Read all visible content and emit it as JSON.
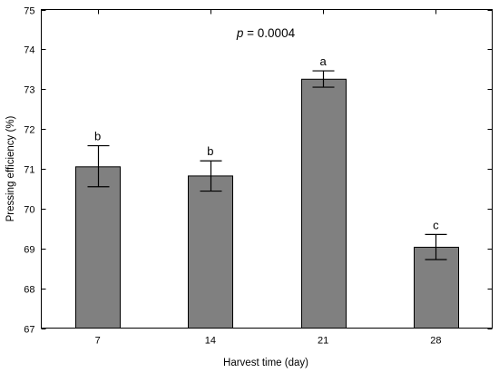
{
  "chart_data": {
    "type": "bar",
    "xlabel": "Harvest time (day)",
    "ylabel": "Pressing efficiency (%)",
    "categories": [
      "7",
      "14",
      "21",
      "28"
    ],
    "values": [
      71.05,
      70.82,
      73.25,
      69.03
    ],
    "error_upper": [
      71.58,
      71.2,
      73.46,
      69.35
    ],
    "error_lower": [
      70.55,
      70.44,
      73.05,
      68.72
    ],
    "letters": [
      "b",
      "b",
      "a",
      "c"
    ],
    "annotation": {
      "italic": "p",
      "text": " = 0.0004"
    },
    "ylim": [
      67,
      75
    ],
    "yticks": [
      67,
      68,
      69,
      70,
      71,
      72,
      73,
      74,
      75
    ],
    "grid": false,
    "colors": {
      "bar": "#808080",
      "outline": "#000000"
    }
  }
}
